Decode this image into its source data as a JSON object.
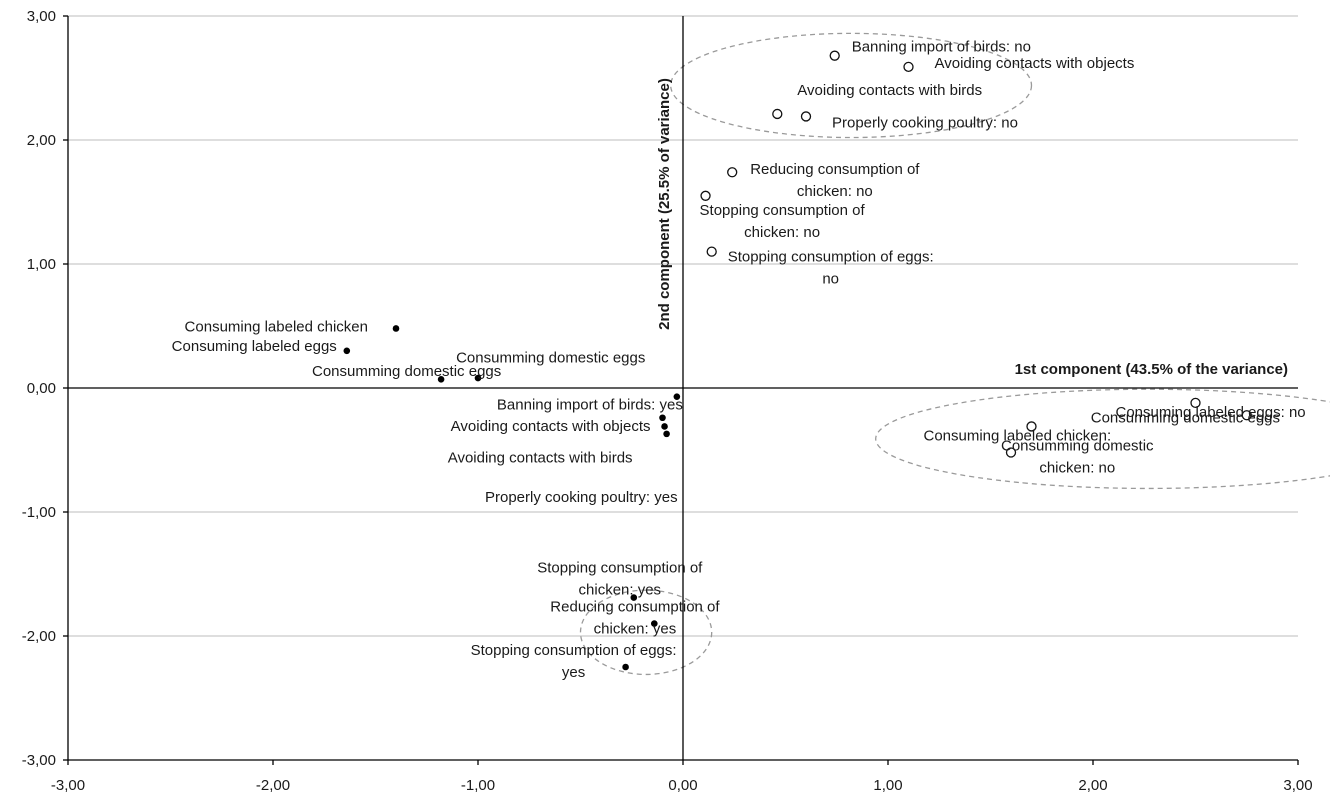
{
  "chart_data": {
    "type": "scatter",
    "xlim": [
      -3,
      3
    ],
    "ylim": [
      -3,
      3
    ],
    "x_ticks": [
      "-3,00",
      "-2,00",
      "-1,00",
      "0,00",
      "1,00",
      "2,00",
      "3,00"
    ],
    "y_ticks": [
      "-3,00",
      "-2,00",
      "-1,00",
      "0,00",
      "1,00",
      "2,00",
      "3,00"
    ],
    "grid": "horizontal",
    "xlabel": "1st component  (43.5% of the variance)",
    "ylabel": "2nd component   (25.5%  of variance)",
    "series": [
      {
        "marker": "open-circle",
        "points": [
          {
            "x": 0.74,
            "y": 2.68,
            "label": [
              "Banning import of birds: no"
            ]
          },
          {
            "x": 1.1,
            "y": 2.59,
            "label": [
              "Avoiding contacts with objects"
            ]
          },
          {
            "x": 0.46,
            "y": 2.21,
            "label": [
              "Avoiding contacts with birds"
            ]
          },
          {
            "x": 0.6,
            "y": 2.19,
            "label": [
              "Properly cooking poultry: no"
            ]
          },
          {
            "x": 0.24,
            "y": 1.74,
            "label": [
              "Reducing consumption of",
              "chicken: no"
            ]
          },
          {
            "x": 0.11,
            "y": 1.55,
            "label": [
              "Stopping consumption of",
              "chicken: no"
            ]
          },
          {
            "x": 0.14,
            "y": 1.1,
            "label": [
              "Stopping consumption of eggs:",
              "no"
            ]
          },
          {
            "x": 2.5,
            "y": -0.12,
            "label": [
              "Consuming labeled eggs: no"
            ]
          },
          {
            "x": 2.75,
            "y": -0.22,
            "label": [
              "Consumming domestic eggs"
            ]
          },
          {
            "x": 1.7,
            "y": -0.31,
            "label": [
              "Consuming labeled chicken:"
            ]
          },
          {
            "x": 1.6,
            "y": -0.52,
            "label": [
              "Consumming domestic",
              "chicken: no"
            ]
          }
        ]
      },
      {
        "marker": "filled-dot",
        "points": [
          {
            "x": -1.4,
            "y": 0.48,
            "label": [
              "Consuming labeled chicken"
            ]
          },
          {
            "x": -1.64,
            "y": 0.3,
            "label": [
              "Consuming labeled eggs"
            ]
          },
          {
            "x": -1.18,
            "y": 0.07,
            "label": [
              "Consumming domestic eggs"
            ]
          },
          {
            "x": -1.0,
            "y": 0.08,
            "label": [
              "Consumming domestic eggs"
            ]
          },
          {
            "x": -0.03,
            "y": -0.07,
            "label": [
              "Banning import of birds: yes"
            ]
          },
          {
            "x": -0.1,
            "y": -0.24,
            "label": [
              "Avoiding contacts with objects"
            ]
          },
          {
            "x": -0.09,
            "y": -0.31,
            "label": [
              "Avoiding contacts with birds"
            ]
          },
          {
            "x": -0.08,
            "y": -0.37,
            "label": [
              "Properly cooking poultry: yes"
            ]
          },
          {
            "x": -0.24,
            "y": -1.69,
            "label": [
              "Stopping consumption of",
              "chicken: yes"
            ]
          },
          {
            "x": -0.14,
            "y": -1.9,
            "label": [
              "Reducing consumption of",
              "chicken: yes"
            ]
          },
          {
            "x": -0.28,
            "y": -2.25,
            "label": [
              "Stopping consumption of eggs:",
              "yes"
            ]
          }
        ]
      }
    ],
    "clusters": [
      {
        "cx": 0.82,
        "cy": 2.44,
        "rx": 0.88,
        "ry": 0.42
      },
      {
        "cx": 2.27,
        "cy": -0.41,
        "rx": 1.33,
        "ry": 0.4
      },
      {
        "cx": -0.18,
        "cy": -1.97,
        "rx": 0.32,
        "ry": 0.34
      }
    ]
  }
}
